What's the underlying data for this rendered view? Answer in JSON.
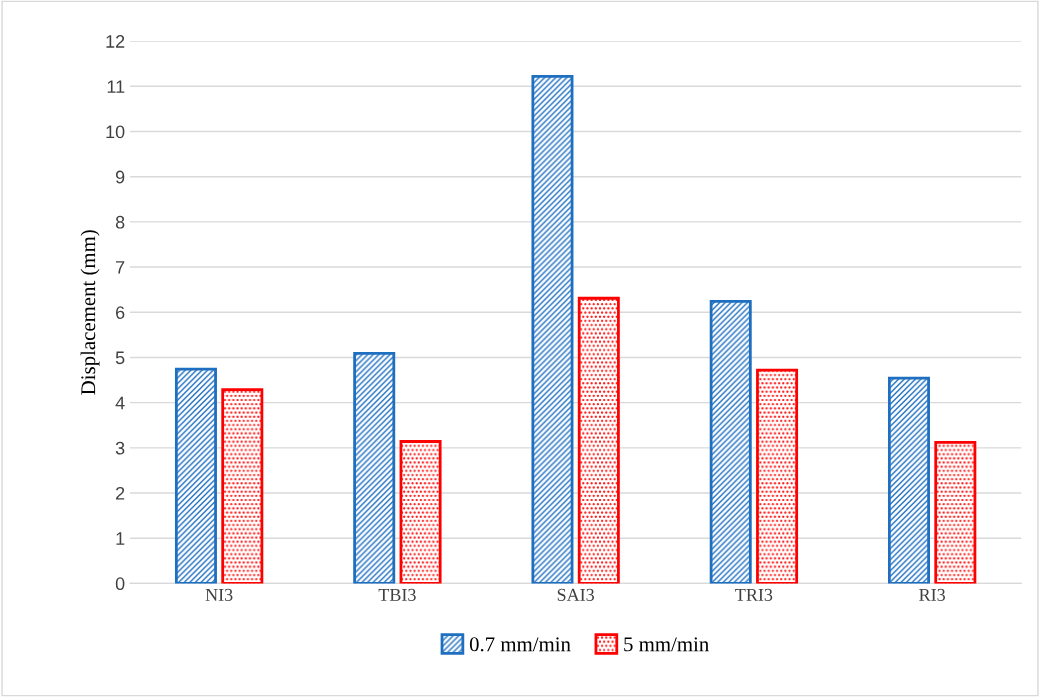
{
  "chart_data": {
    "type": "bar",
    "ylabel": "Displacement (mm)",
    "categories": [
      "NI3",
      "TBI3",
      "SAI3",
      "TRI3",
      "RI3"
    ],
    "series": [
      {
        "name": "0.7 mm/min",
        "color": "#1f6fc0",
        "values": [
          4.74,
          5.09,
          11.22,
          6.24,
          4.54
        ]
      },
      {
        "name": "5 mm/min",
        "color": "#ff0000",
        "values": [
          4.29,
          3.14,
          6.31,
          4.72,
          3.12
        ]
      }
    ],
    "ylim": [
      0,
      12
    ],
    "yticks": [
      0,
      1,
      2,
      3,
      4,
      5,
      6,
      7,
      8,
      9,
      10,
      11,
      12
    ],
    "grid": "y",
    "legend": "bottom"
  }
}
